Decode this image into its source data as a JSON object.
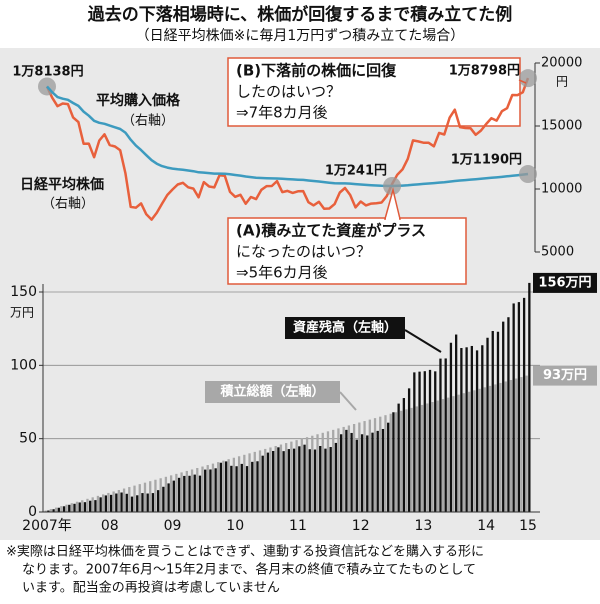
{
  "title": "過去の下落相場時に、株価が回復するまで積み立てた例",
  "subtitle": "（日経平均株価※に毎月1万円ずつ積み立てた場合）",
  "footnote": [
    "※実際は日経平均株価を買うことはできず、連動する投資信託などを購入する形に",
    "なります。2007年6月～15年2月まで、各月末の終値で積み立てたものとして",
    "います。配当金の再投資は考慮していません"
  ],
  "chart_data": [
    {
      "type": "line",
      "ylim": [
        5000,
        20000
      ],
      "yticks": [
        5000,
        10000,
        15000,
        20000
      ],
      "y_unit": "円",
      "series": [
        {
          "name": "日経平均株価",
          "axis_note": "（右軸）",
          "color": "#e8603c",
          "values": [
            18138,
            17248,
            16569,
            16785,
            16737,
            15680,
            15307,
            13592,
            13603,
            12525,
            13849,
            14338,
            13481,
            13376,
            13072,
            11259,
            8576,
            8512,
            8859,
            7994,
            7568,
            8109,
            8828,
            9522,
            9958,
            10356,
            10492,
            10133,
            10034,
            9345,
            10546,
            10198,
            10126,
            11089,
            11057,
            9768,
            9382,
            9537,
            8824,
            9369,
            9202,
            9937,
            10228,
            10237,
            10624,
            9755,
            9849,
            9693,
            9816,
            9833,
            8955,
            8700,
            8988,
            8434,
            8455,
            8802,
            9723,
            10083,
            9520,
            8542,
            9006,
            8695,
            8839,
            8870,
            8928,
            9446,
            10395,
            11138,
            11559,
            12397,
            13860,
            13774,
            13677,
            13668,
            13388,
            14455,
            14327,
            15662,
            16291,
            14914,
            14841,
            14828,
            14304,
            14632,
            15162,
            15621,
            15425,
            16174,
            16414,
            17460,
            17451,
            17674,
            18798
          ],
          "value_labels": [
            "1万8138円",
            null,
            null,
            null,
            null,
            null,
            null,
            null,
            null,
            null,
            null,
            null,
            null,
            null,
            null,
            null,
            null,
            null,
            null,
            null,
            null,
            null,
            null,
            null,
            null,
            null,
            null,
            null,
            null,
            null,
            null,
            null,
            null,
            null,
            null,
            null,
            null,
            null,
            null,
            null,
            null,
            null,
            null,
            null,
            null,
            null,
            null,
            null,
            null,
            null,
            null,
            null,
            null,
            null,
            null,
            null,
            null,
            null,
            null,
            null,
            null,
            null,
            null,
            null,
            null,
            null,
            null,
            null,
            null,
            null,
            null,
            null,
            null,
            null,
            null,
            null,
            null,
            null,
            null,
            null,
            null,
            null,
            null,
            null,
            null,
            null,
            null,
            null,
            null,
            null,
            null,
            null,
            "1万8798円"
          ]
        },
        {
          "name": "平均購入価格",
          "axis_note": "（右軸）",
          "color": "#3d9bbf",
          "values": [
            18138,
            17682,
            17295,
            17165,
            17077,
            16827,
            16592,
            16146,
            15818,
            15413,
            15256,
            15175,
            15030,
            14898,
            14760,
            14479,
            13916,
            13442,
            13085,
            12682,
            12286,
            12005,
            11820,
            11702,
            11621,
            11567,
            11523,
            11467,
            11411,
            11327,
            11300,
            11262,
            11224,
            11220,
            11215,
            11169,
            11112,
            11064,
            10992,
            10945,
            10895,
            10870,
            10854,
            10839,
            10834,
            10808,
            10786,
            10761,
            10739,
            10720,
            10678,
            10632,
            10595,
            10545,
            10498,
            10462,
            10448,
            10442,
            10425,
            10386,
            10360,
            10329,
            10301,
            10275,
            10251,
            10245,
            10241,
            10252,
            10269,
            10295,
            10332,
            10368,
            10402,
            10436,
            10467,
            10505,
            10542,
            10586,
            10633,
            10671,
            10709,
            10745,
            10777,
            10811,
            10848,
            10886,
            10923,
            10964,
            11005,
            11050,
            11095,
            11140,
            11190
          ],
          "value_labels": [
            null,
            null,
            null,
            null,
            null,
            null,
            null,
            null,
            null,
            null,
            null,
            null,
            null,
            null,
            null,
            null,
            null,
            null,
            null,
            null,
            null,
            null,
            null,
            null,
            null,
            null,
            null,
            null,
            null,
            null,
            null,
            null,
            null,
            null,
            null,
            null,
            null,
            null,
            null,
            null,
            null,
            null,
            null,
            null,
            null,
            null,
            null,
            null,
            null,
            null,
            null,
            null,
            null,
            null,
            null,
            null,
            null,
            null,
            null,
            null,
            null,
            null,
            null,
            null,
            null,
            null,
            "1万241円",
            null,
            null,
            null,
            null,
            null,
            null,
            null,
            null,
            null,
            null,
            null,
            null,
            null,
            null,
            null,
            null,
            null,
            null,
            null,
            null,
            null,
            null,
            null,
            null,
            null,
            "1万1190円"
          ]
        }
      ],
      "annotations": [
        {
          "lines": [
            "(B)下落前の株価に回復",
            "したのはいつ？",
            "⇒7年8カ月後"
          ]
        },
        {
          "lines": [
            "(A)積み立てた資産がプラス",
            "になったのはいつ？",
            "⇒5年6カ月後"
          ]
        }
      ]
    },
    {
      "type": "bar",
      "ylim": [
        0,
        150
      ],
      "yticks": [
        0,
        50,
        100,
        150
      ],
      "y_unit": "万円",
      "grid": true,
      "categories": [
        "2007年",
        null,
        null,
        null,
        null,
        null,
        null,
        null,
        null,
        null,
        null,
        null,
        "08",
        null,
        null,
        null,
        null,
        null,
        null,
        null,
        null,
        null,
        null,
        null,
        "09",
        null,
        null,
        null,
        null,
        null,
        null,
        null,
        null,
        null,
        null,
        null,
        "10",
        null,
        null,
        null,
        null,
        null,
        null,
        null,
        null,
        null,
        null,
        null,
        "11",
        null,
        null,
        null,
        null,
        null,
        null,
        null,
        null,
        null,
        null,
        null,
        "12",
        null,
        null,
        null,
        null,
        null,
        null,
        null,
        null,
        null,
        null,
        null,
        "13",
        null,
        null,
        null,
        null,
        null,
        null,
        null,
        null,
        null,
        null,
        null,
        "14",
        null,
        null,
        null,
        null,
        null,
        null,
        null,
        "15"
      ],
      "series": [
        {
          "name": "積立総額（左軸）",
          "color": "#a8a8a8",
          "values": [
            1,
            2,
            3,
            4,
            5,
            6,
            7,
            8,
            9,
            10,
            11,
            12,
            13,
            14,
            15,
            16,
            17,
            18,
            19,
            20,
            21,
            22,
            23,
            24,
            25,
            26,
            27,
            28,
            29,
            30,
            31,
            32,
            33,
            34,
            35,
            36,
            37,
            38,
            39,
            40,
            41,
            42,
            43,
            44,
            45,
            46,
            47,
            48,
            49,
            50,
            51,
            52,
            53,
            54,
            55,
            56,
            57,
            58,
            59,
            60,
            61,
            62,
            63,
            64,
            65,
            66,
            67,
            68,
            69,
            70,
            71,
            72,
            73,
            74,
            75,
            76,
            77,
            78,
            79,
            80,
            81,
            82,
            83,
            84,
            85,
            86,
            87,
            88,
            89,
            90,
            91,
            92,
            93
          ],
          "value_labels": [
            null,
            null,
            null,
            null,
            null,
            null,
            null,
            null,
            null,
            null,
            null,
            null,
            null,
            null,
            null,
            null,
            null,
            null,
            null,
            null,
            null,
            null,
            null,
            null,
            null,
            null,
            null,
            null,
            null,
            null,
            null,
            null,
            null,
            null,
            null,
            null,
            null,
            null,
            null,
            null,
            null,
            null,
            null,
            null,
            null,
            null,
            null,
            null,
            null,
            null,
            null,
            null,
            null,
            null,
            null,
            null,
            null,
            null,
            null,
            null,
            null,
            null,
            null,
            null,
            null,
            null,
            null,
            null,
            null,
            null,
            null,
            null,
            null,
            null,
            null,
            null,
            null,
            null,
            null,
            null,
            null,
            null,
            null,
            null,
            null,
            null,
            null,
            null,
            null,
            null,
            null,
            null,
            "93万円"
          ]
        },
        {
          "name": "資産残高（左軸）",
          "color": "#111111",
          "values": [
            1.0,
            1.9,
            2.9,
            3.9,
            4.9,
            5.6,
            6.5,
            6.7,
            7.7,
            8.1,
            10.0,
            11.3,
            11.7,
            12.6,
            13.3,
            12.4,
            10.5,
            11.4,
            12.9,
            12.6,
            12.9,
            14.9,
            17.2,
            19.5,
            21.4,
            23.3,
            24.6,
            24.7,
            25.5,
            24.8,
            28.9,
            29.0,
            29.8,
            33.6,
            34.5,
            31.5,
            31.2,
            32.8,
            31.3,
            34.2,
            34.6,
            38.4,
            40.5,
            41.6,
            44.1,
            41.5,
            42.9,
            43.2,
            44.8,
            45.9,
            42.8,
            42.6,
            45.0,
            43.2,
            44.3,
            47.1,
            53.0,
            56.0,
            53.9,
            49.3,
            53.0,
            52.2,
            54.1,
            55.3,
            56.6,
            60.9,
            68.0,
            73.9,
            77.7,
            84.3,
            95.2,
            95.7,
            96.0,
            96.9,
            95.9,
            104.6,
            104.7,
            115.4,
            121.0,
            111.8,
            112.3,
            113.2,
            110.2,
            113.7,
            118.8,
            123.4,
            122.9,
            129.8,
            132.8,
            142.2,
            143.1,
            146.0,
            156.2
          ],
          "value_labels": [
            null,
            null,
            null,
            null,
            null,
            null,
            null,
            null,
            null,
            null,
            null,
            null,
            null,
            null,
            null,
            null,
            null,
            null,
            null,
            null,
            null,
            null,
            null,
            null,
            null,
            null,
            null,
            null,
            null,
            null,
            null,
            null,
            null,
            null,
            null,
            null,
            null,
            null,
            null,
            null,
            null,
            null,
            null,
            null,
            null,
            null,
            null,
            null,
            null,
            null,
            null,
            null,
            null,
            null,
            null,
            null,
            null,
            null,
            null,
            null,
            null,
            null,
            null,
            null,
            null,
            null,
            null,
            null,
            null,
            null,
            null,
            null,
            null,
            null,
            null,
            null,
            null,
            null,
            null,
            null,
            null,
            null,
            null,
            null,
            null,
            null,
            null,
            null,
            null,
            null,
            null,
            null,
            "156万円"
          ]
        }
      ]
    }
  ]
}
